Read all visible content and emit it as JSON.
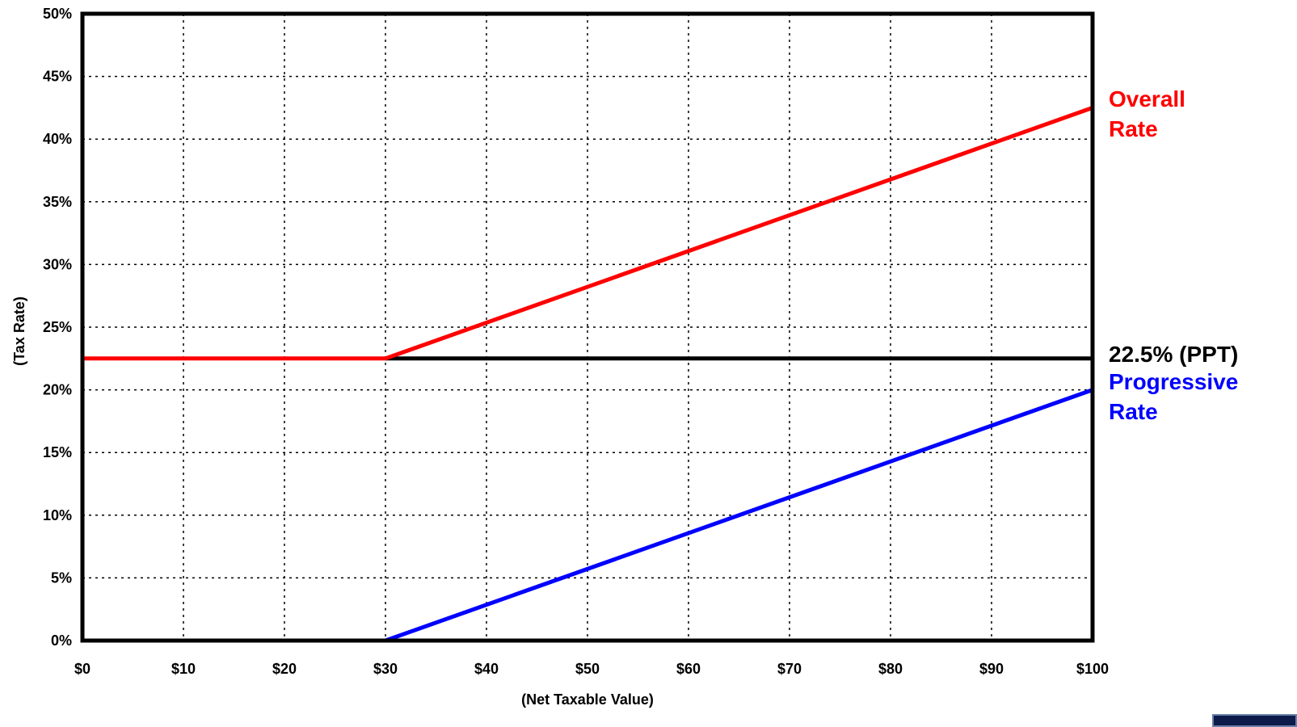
{
  "chart_data": {
    "type": "line",
    "xlabel": "(Net Taxable Value)",
    "ylabel": "(Tax Rate)",
    "xlim": [
      0,
      100
    ],
    "ylim": [
      0,
      50
    ],
    "x_ticks": [
      "$0",
      "$10",
      "$20",
      "$30",
      "$40",
      "$50",
      "$60",
      "$70",
      "$80",
      "$90",
      "$100"
    ],
    "y_ticks": [
      "0%",
      "5%",
      "10%",
      "15%",
      "20%",
      "25%",
      "30%",
      "35%",
      "40%",
      "45%",
      "50%"
    ],
    "grid": true,
    "series": [
      {
        "name": "Overall Rate",
        "label_lines": [
          "Overall",
          "Rate"
        ],
        "color": "#ff0000",
        "x": [
          0,
          30,
          100
        ],
        "y": [
          22.5,
          22.5,
          42.5
        ]
      },
      {
        "name": "22.5% (PPT)",
        "label_lines": [
          "22.5% (PPT)"
        ],
        "color": "#000000",
        "x": [
          30,
          100
        ],
        "y": [
          22.5,
          22.5
        ]
      },
      {
        "name": "Progressive Rate",
        "label_lines": [
          "Progressive",
          "Rate"
        ],
        "color": "#0000ff",
        "x": [
          30,
          100
        ],
        "y": [
          0,
          20
        ]
      }
    ]
  }
}
